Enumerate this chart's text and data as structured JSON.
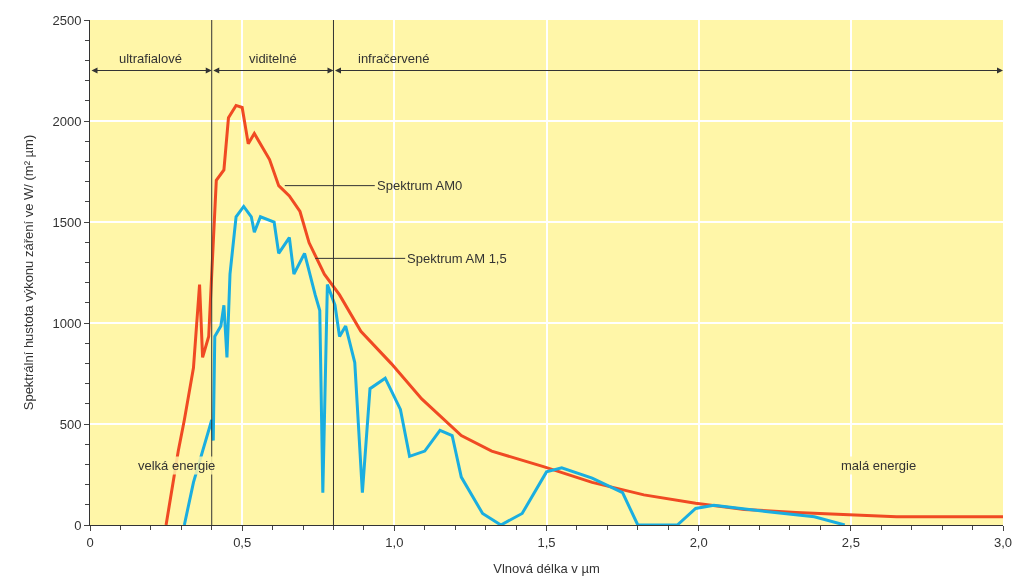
{
  "chart_data": {
    "type": "line",
    "xlabel": "Vlnová délka v µm",
    "ylabel": "Spektrální hustota výkonu záření ve W/ (m² µm)",
    "xlim": [
      0,
      3.0
    ],
    "ylim": [
      0,
      2500
    ],
    "xticks": [
      0,
      {
        "value": 0.5,
        "label": "0,5"
      },
      {
        "value": 1.0,
        "label": "1,0"
      },
      {
        "value": 1.5,
        "label": "1,5"
      },
      {
        "value": 2.0,
        "label": "2,0"
      },
      {
        "value": 2.5,
        "label": "2,5"
      },
      {
        "value": 3.0,
        "label": "3,0"
      }
    ],
    "yticks": [
      0,
      500,
      1000,
      1500,
      2000,
      2500
    ],
    "grid": true,
    "marker": "none",
    "line_style": "solid",
    "series": [
      {
        "color": "#f04a23",
        "x": [
          0.25,
          0.29,
          0.31,
          0.34,
          0.36,
          0.37,
          0.39,
          0.415,
          0.44,
          0.455,
          0.48,
          0.5,
          0.52,
          0.54,
          0.59,
          0.62,
          0.655,
          0.69,
          0.72,
          0.77,
          0.82,
          0.89,
          0.99,
          1.09,
          1.22,
          1.32,
          1.49,
          1.65,
          1.82,
          1.99,
          2.15,
          2.32,
          2.65,
          3.0
        ],
        "values": [
          0,
          366,
          520,
          778,
          1190,
          830,
          933,
          1706,
          1758,
          2016,
          2077,
          2067,
          1887,
          1938,
          1809,
          1680,
          1629,
          1552,
          1397,
          1242,
          1139,
          959,
          799,
          624,
          443,
          366,
          289,
          211,
          149,
          108,
          77,
          62,
          41,
          41
        ]
      },
      {
        "color": "#1aaee0",
        "x": [
          0.31,
          0.34,
          0.37,
          0.4,
          0.405,
          0.41,
          0.43,
          0.44,
          0.45,
          0.46,
          0.48,
          0.505,
          0.53,
          0.54,
          0.56,
          0.605,
          0.62,
          0.655,
          0.67,
          0.705,
          0.74,
          0.755,
          0.765,
          0.78,
          0.805,
          0.82,
          0.84,
          0.87,
          0.895,
          0.92,
          0.97,
          1.02,
          1.05,
          1.1,
          1.15,
          1.19,
          1.22,
          1.29,
          1.35,
          1.42,
          1.5,
          1.55,
          1.65,
          1.75,
          1.8,
          1.93,
          1.99,
          2.05,
          2.22,
          2.38,
          2.48
        ],
        "values": [
          0,
          211,
          366,
          520,
          418,
          933,
          985,
          1088,
          830,
          1242,
          1526,
          1577,
          1526,
          1449,
          1526,
          1500,
          1345,
          1423,
          1242,
          1345,
          1139,
          1062,
          160,
          1190,
          1088,
          933,
          985,
          804,
          160,
          675,
          727,
          572,
          340,
          366,
          469,
          443,
          237,
          57,
          0,
          57,
          263,
          283,
          232,
          160,
          0,
          0,
          82,
          98,
          67,
          41,
          0
        ]
      }
    ],
    "ref_lines": [
      {
        "axis": "x",
        "value": 0.4,
        "color": "#333333"
      },
      {
        "axis": "x",
        "value": 0.8,
        "color": "#333333"
      }
    ],
    "annotations": [
      "ultrafialové",
      "viditelné",
      "infračervené",
      {
        "text": "Spektrum AM0",
        "x": 0.64,
        "y": 1680
      },
      {
        "text": "Spektrum AM 1,5",
        "x": 0.74,
        "y": 1320
      },
      "velká energie",
      "malá energie"
    ]
  }
}
